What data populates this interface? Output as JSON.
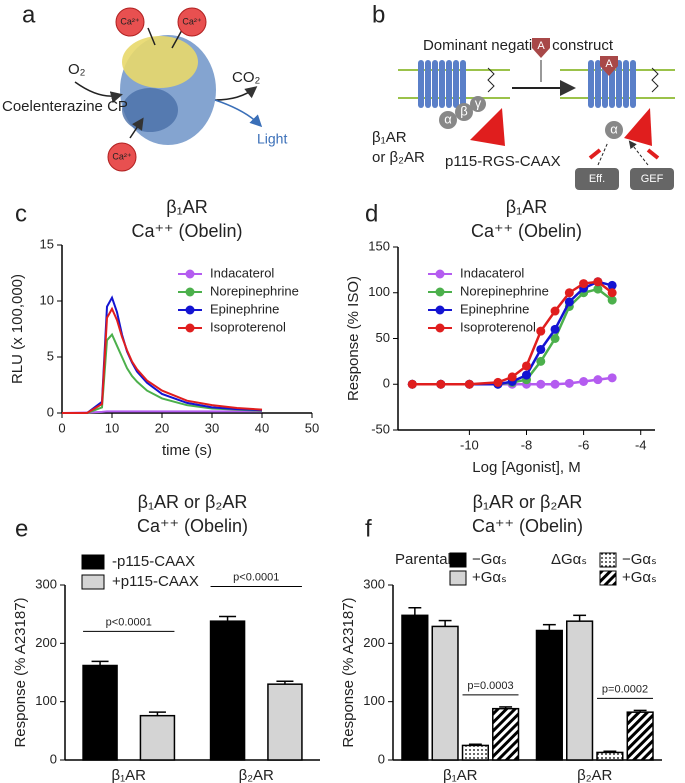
{
  "diagram_a": {
    "label": "a",
    "ca": [
      "Ca²⁺",
      "Ca²⁺",
      "Ca²⁺"
    ],
    "o2": "O₂",
    "substrate": "Coelenterazine CP",
    "co2": "CO₂",
    "light": "Light"
  },
  "diagram_b": {
    "label": "b",
    "title": "Dominant negative construct",
    "agonist": [
      "A",
      "A"
    ],
    "receptor": [
      "β₁AR",
      "or β₂AR"
    ],
    "construct": "p115-RGS-CAAX",
    "subunits": [
      "α",
      "β",
      "γ",
      "α"
    ],
    "effector": "Eff.",
    "gef": "GEF"
  },
  "chart_data": [
    {
      "type": "line",
      "panel_label": "c",
      "title": "β₁AR",
      "subtitle": "Ca⁺⁺ (Obelin)",
      "x_label": "time (s)",
      "y_label": "RLU (x 100,000)",
      "x": [
        0,
        5,
        8,
        9,
        10,
        11,
        12,
        13,
        14,
        15,
        17,
        20,
        25,
        30,
        35,
        40
      ],
      "series": [
        {
          "name": "Indacaterol",
          "color": "#b45cf0",
          "values": [
            0,
            0.05,
            0.1,
            0.15,
            0.15,
            0.15,
            0.15,
            0.15,
            0.15,
            0.15,
            0.15,
            0.15,
            0.15,
            0.15,
            0.15,
            0.15
          ]
        },
        {
          "name": "Norepinephrine",
          "color": "#4cb04c",
          "values": [
            0,
            0,
            0.5,
            6.5,
            7,
            6,
            5,
            4,
            3.3,
            2.8,
            2,
            1.3,
            0.7,
            0.4,
            0.3,
            0.2
          ]
        },
        {
          "name": "Epinephrine",
          "color": "#1414d2",
          "values": [
            0,
            0,
            1,
            9.5,
            10.3,
            9,
            7,
            5.5,
            4.5,
            3.7,
            2.7,
            1.7,
            0.9,
            0.5,
            0.35,
            0.25
          ]
        },
        {
          "name": "Isoproterenol",
          "color": "#e01e1e",
          "values": [
            0,
            0,
            0.8,
            8.5,
            9.3,
            8.3,
            6.8,
            5.6,
            4.6,
            3.9,
            2.9,
            2,
            1.1,
            0.7,
            0.45,
            0.3
          ]
        }
      ],
      "xlim": [
        0,
        50
      ],
      "xticks": [
        0,
        10,
        20,
        30,
        40,
        50
      ],
      "ylim": [
        0,
        15
      ],
      "yticks": [
        0,
        5,
        10,
        15
      ]
    },
    {
      "type": "scatter",
      "panel_label": "d",
      "title": "β₁AR",
      "subtitle": "Ca⁺⁺ (Obelin)",
      "x_label": "Log [Agonist], M",
      "y_label": "Response (% ISO)",
      "x": [
        -12,
        -11,
        -10,
        -9,
        -8.5,
        -8,
        -7.5,
        -7,
        -6.5,
        -6,
        -5.5,
        -5
      ],
      "series": [
        {
          "name": "Indacaterol",
          "color": "#b45cf0",
          "values": [
            0,
            0,
            0,
            0,
            0,
            0,
            0,
            0,
            1,
            3,
            5,
            7
          ]
        },
        {
          "name": "Norepinephrine",
          "color": "#4cb04c",
          "values": [
            0,
            0,
            0,
            0,
            2,
            5,
            25,
            50,
            85,
            100,
            104,
            92
          ]
        },
        {
          "name": "Epinephrine",
          "color": "#1414d2",
          "values": [
            0,
            0,
            0,
            0,
            3,
            10,
            38,
            60,
            90,
            105,
            112,
            108
          ]
        },
        {
          "name": "Isoproterenol",
          "color": "#e01e1e",
          "values": [
            0,
            0,
            0,
            2,
            8,
            20,
            58,
            80,
            100,
            110,
            112,
            100
          ]
        }
      ],
      "xlim": [
        -12.5,
        -3.5
      ],
      "xticks": [
        -10,
        -8,
        -6,
        -4
      ],
      "ylim": [
        -50,
        150
      ],
      "yticks": [
        -50,
        0,
        50,
        100,
        150
      ]
    },
    {
      "type": "bar",
      "panel_label": "e",
      "title": "β₁AR or β₂AR",
      "subtitle": "Ca⁺⁺ (Obelin)",
      "y_label": "Response (% A23187)",
      "categories": [
        "β₁AR",
        "β₂AR"
      ],
      "series": [
        {
          "name": "-p115-CAAX",
          "color": "#000000",
          "values": [
            162,
            238
          ],
          "errors": [
            7,
            8
          ]
        },
        {
          "name": "+p115-CAAX",
          "color": "#d4d4d4",
          "values": [
            76,
            130
          ],
          "errors": [
            6,
            5
          ]
        }
      ],
      "annotations": [
        "p<0.0001",
        "p<0.0001"
      ],
      "ylim": [
        0,
        300
      ],
      "yticks": [
        0,
        100,
        200,
        300
      ]
    },
    {
      "type": "bar",
      "panel_label": "f",
      "title": "β₁AR or β₂AR",
      "subtitle": "Ca⁺⁺ (Obelin)",
      "y_label": "Response (% A23187)",
      "categories": [
        "β₁AR",
        "β₂AR"
      ],
      "legend_groups": [
        "Parental",
        "ΔGαₛ"
      ],
      "series": [
        {
          "name": "−Gαₛ",
          "color": "#000000",
          "values": [
            248,
            222
          ],
          "errors": [
            13,
            10
          ]
        },
        {
          "name": "+Gαₛ",
          "color": "#d4d4d4",
          "values": [
            229,
            238
          ],
          "errors": [
            10,
            10
          ]
        },
        {
          "name": "−Gαₛ",
          "color": "#ffffff",
          "pattern": "dots",
          "values": [
            25,
            13
          ],
          "errors": [
            2,
            2
          ]
        },
        {
          "name": "+Gαₛ",
          "color": "#ffffff",
          "pattern": "hatch",
          "values": [
            88,
            82
          ],
          "errors": [
            3,
            3
          ]
        }
      ],
      "annotations": [
        "p=0.0003",
        "p=0.0002"
      ],
      "ylim": [
        0,
        300
      ],
      "yticks": [
        0,
        100,
        200,
        300
      ]
    }
  ]
}
